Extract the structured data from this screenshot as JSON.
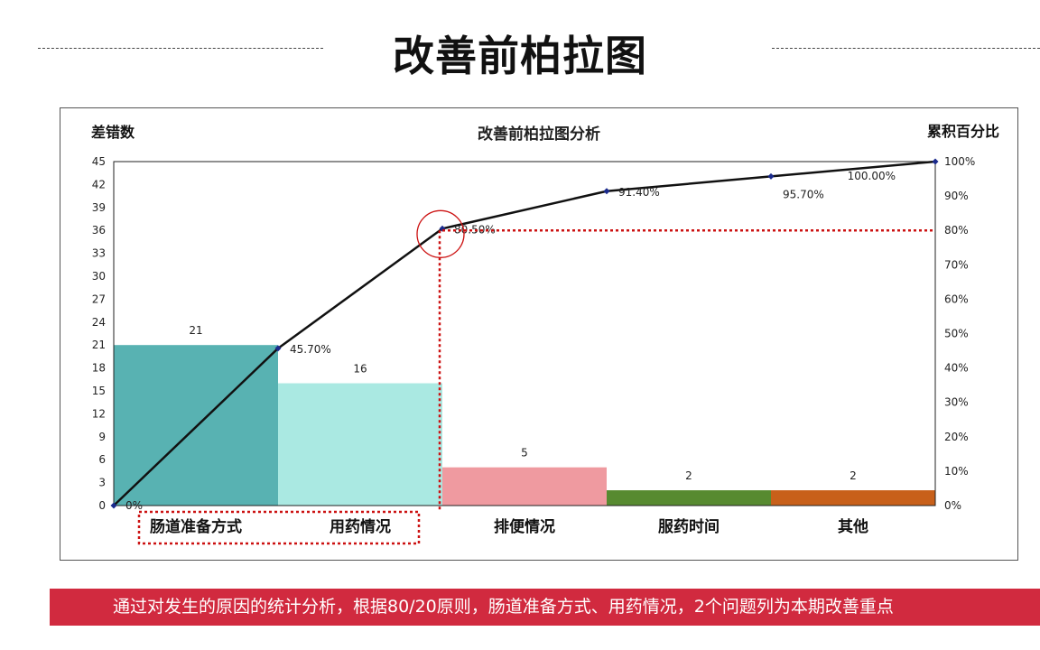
{
  "page": {
    "title": "改善前柏拉图",
    "footer_text": "通过对发生的原因的统计分析，根据80/20原则，肠道准备方式、用药情况，2个问题列为本期改善重点"
  },
  "chart_data": {
    "type": "bar+line",
    "title": "改善前柏拉图分析",
    "ylabel_left": "差错数",
    "ylabel_right": "累积百分比",
    "categories": [
      "肠道准备方式",
      "用药情况",
      "排便情况",
      "服药时间",
      "其他"
    ],
    "bars": {
      "values": [
        21,
        16,
        5,
        2,
        2
      ],
      "colors": [
        "#58b2b2",
        "#aae9e2",
        "#ef9aa0",
        "#578a30",
        "#c8601a"
      ]
    },
    "cumulative": {
      "values": [
        0,
        45.7,
        80.5,
        91.4,
        95.7,
        100
      ],
      "labels": [
        "0%",
        "45.70%",
        "80.50%",
        "91.40%",
        "95.70%",
        "100.00%"
      ]
    },
    "left_axis": {
      "min": 0,
      "max": 45,
      "step": 3
    },
    "right_axis": {
      "min": 0,
      "max": 100,
      "step": 10
    },
    "threshold_percent": 80,
    "highlight_categories": [
      "肠道准备方式",
      "用药情况"
    ],
    "colors": {
      "line": "#111111",
      "marker": "#1a2a8c",
      "threshold": "#cc1111",
      "banner": "#d12a3f"
    }
  }
}
